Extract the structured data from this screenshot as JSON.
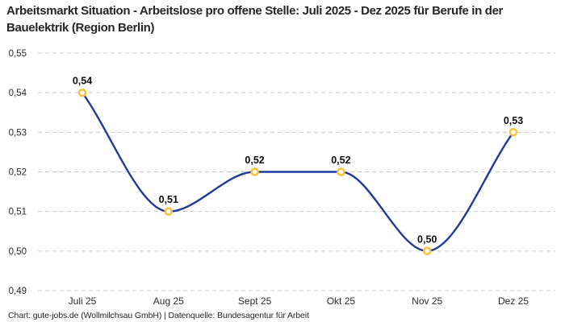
{
  "chart_data": {
    "type": "line",
    "title": "Arbeitsmarkt Situation - Arbeitslose pro offene Stelle: Juli 2025 - Dez 2025 für Berufe in der Bauelektrik (Region Berlin)",
    "categories": [
      "Juli 25",
      "Aug 25",
      "Sept 25",
      "Okt 25",
      "Nov 25",
      "Dez 25"
    ],
    "values": [
      0.54,
      0.51,
      0.52,
      0.52,
      0.5,
      0.53
    ],
    "point_labels": [
      "0,54",
      "0,51",
      "0,52",
      "0,52",
      "0,50",
      "0,53"
    ],
    "ylim": [
      0.49,
      0.55
    ],
    "ytick_step": 0.01,
    "ytick_labels": [
      "0,55",
      "0,54",
      "0,53",
      "0,52",
      "0,51",
      "0,50",
      "0,49"
    ],
    "xlabel": "",
    "ylabel": "",
    "legend": "none",
    "grid": "horizontal-dashed",
    "line_style": "smooth-monotone",
    "decimal_separator": ",",
    "colors": {
      "line": "#1f3a9d",
      "marker_ring": "#f8c33a",
      "marker_fill": "#ffffff",
      "gridline": "#c9c9c9",
      "text": "#262626"
    },
    "attribution": "Chart: gute-jobs.de (Wollmilchsau GmbH) | Datenquelle: Bundesagentur für Arbeit"
  }
}
